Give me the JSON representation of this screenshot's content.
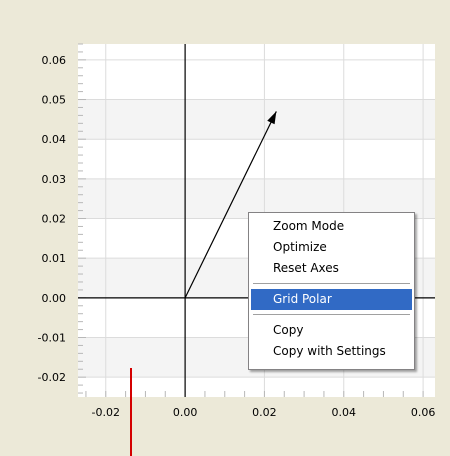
{
  "chart_data": {
    "type": "vector",
    "xlim": [
      -0.027,
      0.063
    ],
    "ylim": [
      -0.025,
      0.064
    ],
    "x_ticks": [
      "-0.02",
      "0.00",
      "0.02",
      "0.04",
      "0.06"
    ],
    "x_tick_values": [
      -0.02,
      0.0,
      0.02,
      0.04,
      0.06
    ],
    "y_ticks": [
      "0.06",
      "0.05",
      "0.04",
      "0.03",
      "0.02",
      "0.01",
      "0.00",
      "-0.01",
      "-0.02"
    ],
    "y_tick_values": [
      0.06,
      0.05,
      0.04,
      0.03,
      0.02,
      0.01,
      0.0,
      -0.01,
      -0.02
    ],
    "vectors": [
      {
        "from": [
          0.0,
          0.0
        ],
        "to": [
          0.023,
          0.047
        ]
      }
    ],
    "grid": true,
    "colors": {
      "band": "#f4f4f4",
      "grid": "#dcdcdc",
      "axis": "#000000",
      "vector": "#000000"
    }
  },
  "context_menu": {
    "items": [
      {
        "label": "Zoom Mode",
        "name": "menu-item-zoom-mode"
      },
      {
        "label": "Optimize",
        "name": "menu-item-optimize"
      },
      {
        "label": "Reset Axes",
        "name": "menu-item-reset-axes"
      },
      {
        "separator": true
      },
      {
        "label": "Grid Polar",
        "name": "menu-item-grid-polar",
        "highlighted": true
      },
      {
        "separator": true
      },
      {
        "label": "Copy",
        "name": "menu-item-copy"
      },
      {
        "label": "Copy with Settings",
        "name": "menu-item-copy-with-settings"
      }
    ],
    "highlight_color": "#316ac5"
  }
}
